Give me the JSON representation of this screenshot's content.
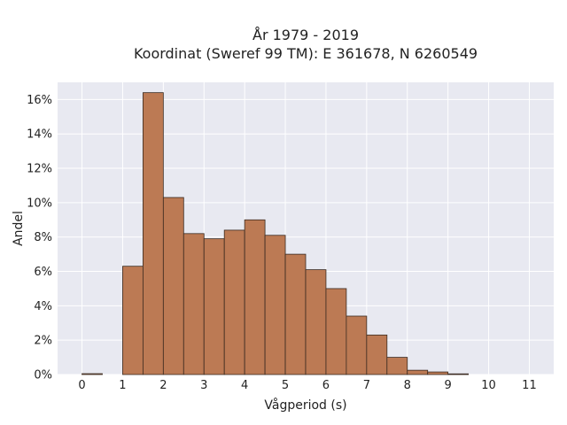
{
  "chart_data": {
    "type": "bar",
    "title": "År 1979 - 2019",
    "subtitle": "Koordinat (Sweref 99 TM): E 361678, N 6260549",
    "xlabel": "Vågperiod (s)",
    "ylabel": "Andel",
    "bin_width": 0.5,
    "bins": [
      {
        "x0": 0.0,
        "x1": 0.5,
        "value": 0.05
      },
      {
        "x0": 0.5,
        "x1": 1.0,
        "value": 0.0
      },
      {
        "x0": 1.0,
        "x1": 1.5,
        "value": 6.3
      },
      {
        "x0": 1.5,
        "x1": 2.0,
        "value": 16.4
      },
      {
        "x0": 2.0,
        "x1": 2.5,
        "value": 10.3
      },
      {
        "x0": 2.5,
        "x1": 3.0,
        "value": 8.2
      },
      {
        "x0": 3.0,
        "x1": 3.5,
        "value": 7.9
      },
      {
        "x0": 3.5,
        "x1": 4.0,
        "value": 8.4
      },
      {
        "x0": 4.0,
        "x1": 4.5,
        "value": 9.0
      },
      {
        "x0": 4.5,
        "x1": 5.0,
        "value": 8.1
      },
      {
        "x0": 5.0,
        "x1": 5.5,
        "value": 7.0
      },
      {
        "x0": 5.5,
        "x1": 6.0,
        "value": 6.1
      },
      {
        "x0": 6.0,
        "x1": 6.5,
        "value": 5.0
      },
      {
        "x0": 6.5,
        "x1": 7.0,
        "value": 3.4
      },
      {
        "x0": 7.0,
        "x1": 7.5,
        "value": 2.3
      },
      {
        "x0": 7.5,
        "x1": 8.0,
        "value": 1.0
      },
      {
        "x0": 8.0,
        "x1": 8.5,
        "value": 0.25
      },
      {
        "x0": 8.5,
        "x1": 9.0,
        "value": 0.15
      },
      {
        "x0": 9.0,
        "x1": 9.5,
        "value": 0.04
      }
    ],
    "xlim": [
      -0.6,
      11.6
    ],
    "ylim": [
      0,
      17
    ],
    "x_ticks": [
      0,
      1,
      2,
      3,
      4,
      5,
      6,
      7,
      8,
      9,
      10,
      11
    ],
    "y_ticks": [
      0,
      2,
      4,
      6,
      8,
      10,
      12,
      14,
      16
    ],
    "y_tick_suffix": "%",
    "grid": true,
    "colors": {
      "bar_fill": "#bc7a54",
      "bar_stroke": "#3a2a20",
      "plot_background": "#e8e9f1",
      "grid": "#ffffff"
    }
  }
}
